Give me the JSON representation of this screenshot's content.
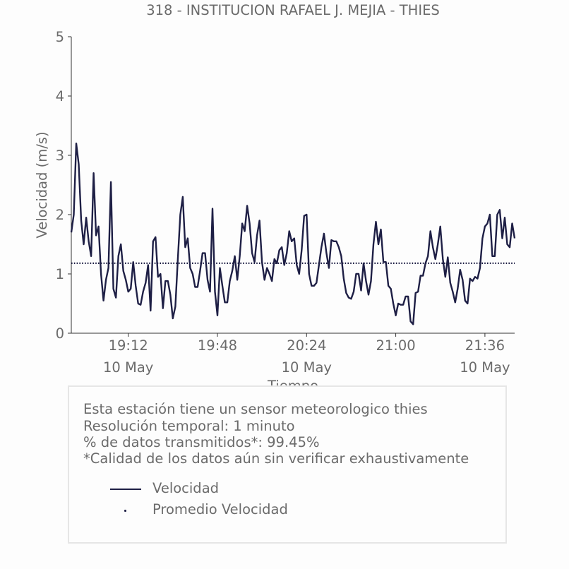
{
  "chart_data": {
    "type": "line",
    "title": "318 - INSTITUCION RAFAEL J. MEJIA - THIES",
    "xlabel": "Tiempo",
    "ylabel": "Velocidad (m/s)",
    "ylim": [
      0,
      5
    ],
    "yticks": [
      "0",
      "1",
      "2",
      "3",
      "4",
      "5"
    ],
    "xticks": [
      {
        "time": "19:12",
        "date": "10 May"
      },
      {
        "time": "19:48",
        "date": ""
      },
      {
        "time": "20:24",
        "date": "10 May"
      },
      {
        "time": "21:00",
        "date": ""
      },
      {
        "time": "21:36",
        "date": "10 May"
      }
    ],
    "grid": false,
    "series": [
      {
        "name": "Velocidad",
        "color": "#1e1f45",
        "style": "solid",
        "x_start": "18:49",
        "x_end": "21:48",
        "values": [
          1.7,
          2.0,
          3.2,
          2.85,
          1.9,
          1.5,
          1.95,
          1.55,
          1.3,
          2.7,
          1.65,
          1.8,
          1.0,
          0.55,
          0.9,
          1.1,
          2.55,
          0.75,
          0.6,
          1.3,
          1.5,
          1.05,
          0.9,
          0.7,
          0.75,
          1.2,
          0.8,
          0.5,
          0.48,
          0.7,
          0.85,
          1.15,
          0.38,
          1.55,
          1.62,
          0.95,
          1.0,
          0.42,
          0.88,
          0.88,
          0.65,
          0.25,
          0.45,
          1.25,
          2.0,
          2.3,
          1.45,
          1.6,
          1.1,
          1.0,
          0.78,
          0.78,
          1.05,
          1.35,
          1.35,
          0.9,
          0.7,
          2.1,
          0.7,
          0.3,
          1.1,
          0.8,
          0.52,
          0.52,
          0.88,
          1.05,
          1.3,
          0.9,
          1.3,
          1.85,
          1.72,
          2.15,
          1.85,
          1.35,
          1.2,
          1.65,
          1.9,
          1.2,
          0.9,
          1.1,
          1.0,
          0.88,
          1.25,
          1.18,
          1.4,
          1.45,
          1.15,
          1.35,
          1.72,
          1.55,
          1.6,
          1.15,
          1.0,
          1.4,
          1.98,
          2.0,
          1.0,
          0.8,
          0.8,
          0.85,
          1.15,
          1.45,
          1.68,
          1.35,
          1.1,
          1.57,
          1.55,
          1.55,
          1.45,
          1.3,
          0.92,
          0.68,
          0.6,
          0.58,
          0.7,
          1.0,
          1.0,
          0.72,
          1.18,
          0.88,
          0.65,
          0.88,
          1.5,
          1.88,
          1.5,
          1.75,
          1.2,
          1.2,
          0.8,
          0.75,
          0.5,
          0.3,
          0.5,
          0.48,
          0.48,
          0.62,
          0.62,
          0.2,
          0.15,
          0.68,
          0.7,
          0.97,
          0.97,
          1.18,
          1.3,
          1.72,
          1.45,
          1.25,
          1.5,
          1.8,
          1.25,
          0.95,
          1.28,
          0.85,
          0.7,
          0.52,
          0.75,
          1.07,
          0.9,
          0.55,
          0.5,
          0.92,
          0.88,
          0.95,
          0.92,
          1.1,
          1.6,
          1.8,
          1.85,
          2.0,
          1.3,
          1.3,
          2.0,
          2.08,
          1.6,
          1.95,
          1.5,
          1.45,
          1.85,
          1.6
        ]
      },
      {
        "name": "Promedio Velocidad",
        "color": "#1e1f45",
        "style": "dotted",
        "value": 1.18
      }
    ],
    "legend": {
      "placement": "box-below-chart"
    }
  },
  "info": {
    "lines": [
      "Esta estación tiene un sensor meteorologico thies",
      "Resolución temporal: 1 minuto",
      "% de datos transmitidos*: 99.45%",
      "*Calidad de los datos aún sin verificar exhaustivamente"
    ]
  }
}
